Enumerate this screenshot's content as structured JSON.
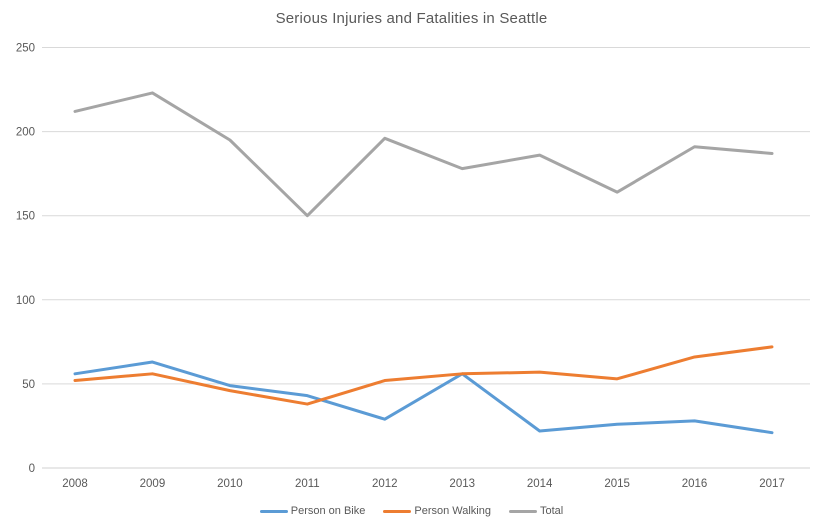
{
  "title": "Serious Injuries and Fatalities in Seattle",
  "chart_data": {
    "type": "line",
    "title": "Serious Injuries and Fatalities in Seattle",
    "x": [
      "2008",
      "2009",
      "2010",
      "2011",
      "2012",
      "2013",
      "2014",
      "2015",
      "2016",
      "2017"
    ],
    "series": [
      {
        "name": "Person on Bike",
        "color": "#5B9BD5",
        "values": [
          56,
          63,
          49,
          43,
          29,
          56,
          22,
          26,
          28,
          21
        ]
      },
      {
        "name": "Person Walking",
        "color": "#ED7D31",
        "values": [
          52,
          56,
          46,
          38,
          52,
          56,
          57,
          53,
          66,
          72
        ]
      },
      {
        "name": "Total",
        "color": "#A5A5A5",
        "values": [
          212,
          223,
          195,
          150,
          196,
          178,
          186,
          164,
          191,
          187
        ]
      }
    ],
    "xlabel": "",
    "ylabel": "",
    "ylim": [
      0,
      250
    ],
    "ytick_interval": 50,
    "y_ticks": [
      0,
      50,
      100,
      150,
      200,
      250
    ],
    "grid": true,
    "gridline_color": "#D9D9D9",
    "text_color": "#595959",
    "legend_position": "bottom"
  }
}
